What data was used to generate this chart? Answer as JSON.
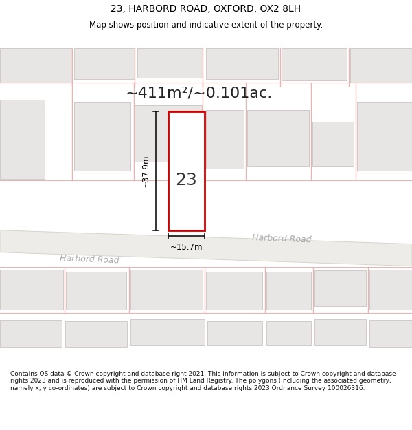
{
  "title_line1": "23, HARBORD ROAD, OXFORD, OX2 8LH",
  "title_line2": "Map shows position and indicative extent of the property.",
  "area_text": "~411m²/~0.101ac.",
  "property_number": "23",
  "dim_vertical": "~37.9m",
  "dim_horizontal": "~15.7m",
  "road_name_upper": "Harbord Road",
  "road_name_lower": "Harbord Road",
  "footer_text": "Contains OS data © Crown copyright and database right 2021. This information is subject to Crown copyright and database rights 2023 and is reproduced with the permission of HM Land Registry. The polygons (including the associated geometry, namely x, y co-ordinates) are subject to Crown copyright and database rights 2023 Ordnance Survey 100026316.",
  "map_bg": "#f7f6f4",
  "building_fill": "#e8e6e4",
  "building_outline": "#d4c8c8",
  "red_line_color": "#e8b4b4",
  "plot_outline_color": "#cc0000",
  "road_fill": "#eeece8",
  "road_edge": "#d8d4cc",
  "road_text_color": "#aaaaaa",
  "text_color": "#222222",
  "title_fontsize": 10,
  "subtitle_fontsize": 8.5,
  "area_fontsize": 16,
  "number_fontsize": 18,
  "dim_fontsize": 8.5,
  "road_fontsize": 9,
  "footer_fontsize": 6.5
}
